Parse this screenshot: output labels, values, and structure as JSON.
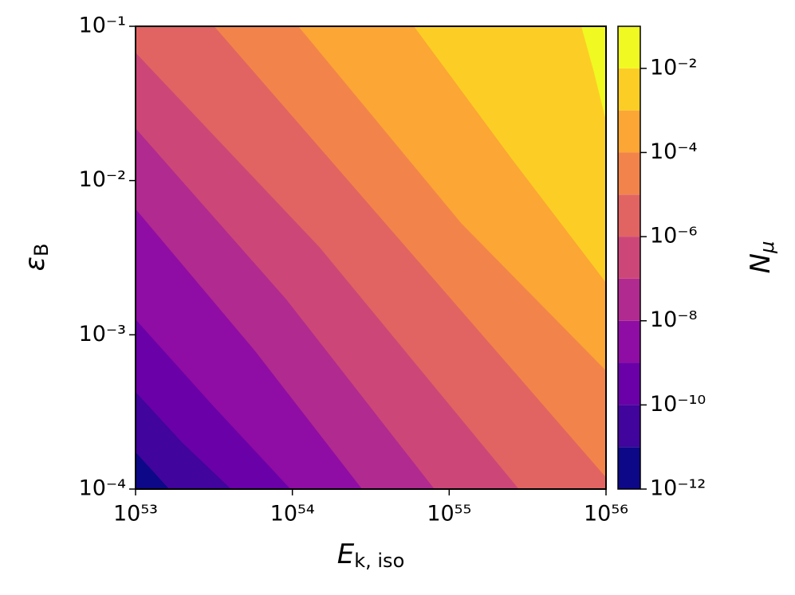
{
  "chart_data": {
    "type": "contour",
    "xlabel": "E",
    "xlabel_sub": "k, iso",
    "ylabel": "ε",
    "ylabel_sub": "B",
    "colorbar_label": "N",
    "colorbar_label_sub": "μ",
    "xscale": "log",
    "yscale": "log",
    "colorbar_scale": "log",
    "xlim": [
      1e+53,
      1e+56
    ],
    "ylim": [
      0.0001,
      0.1
    ],
    "xticks": [
      {
        "value": 1e+53,
        "label": "10⁵³"
      },
      {
        "value": 1e+54,
        "label": "10⁵⁴"
      },
      {
        "value": 1e+55,
        "label": "10⁵⁵"
      },
      {
        "value": 1e+56,
        "label": "10⁵⁶"
      }
    ],
    "yticks": [
      {
        "value": 0.0001,
        "label": "10⁻⁴"
      },
      {
        "value": 0.001,
        "label": "10⁻³"
      },
      {
        "value": 0.01,
        "label": "10⁻²"
      },
      {
        "value": 0.1,
        "label": "10⁻¹"
      }
    ],
    "levels": [
      1e-12,
      1e-11,
      1e-10,
      1e-09,
      1e-08,
      1e-07,
      1e-06,
      1e-05,
      0.0001,
      0.001,
      0.01,
      0.1
    ],
    "colors": [
      "#0d0887",
      "#41049d",
      "#6a00a8",
      "#8f0da4",
      "#b12a90",
      "#cc4778",
      "#e16462",
      "#f2844b",
      "#fca636",
      "#fcce25",
      "#f0f921"
    ],
    "colorbar_ticks": [
      {
        "value": 1e-12,
        "label": "10⁻¹²"
      },
      {
        "value": 1e-10,
        "label": "10⁻¹⁰"
      },
      {
        "value": 1e-08,
        "label": "10⁻⁸"
      },
      {
        "value": 1e-06,
        "label": "10⁻⁶"
      },
      {
        "value": 0.0001,
        "label": "10⁻⁴"
      },
      {
        "value": 0.01,
        "label": "10⁻²"
      }
    ],
    "contours": [
      {
        "x": [
          1e+53,
          1.65e+53
        ],
        "y": [
          0.000175,
          0.0001
        ]
      },
      {
        "x": [
          1e+53,
          2e+53,
          4.1e+53
        ],
        "y": [
          0.00043,
          0.0002,
          0.0001
        ]
      },
      {
        "x": [
          1e+53,
          3.2e+53,
          9.8e+53
        ],
        "y": [
          0.00127,
          0.00034,
          0.0001
        ]
      },
      {
        "x": [
          1e+53,
          5.8e+53,
          2.8e+54
        ],
        "y": [
          0.0066,
          0.00079,
          0.0001
        ]
      },
      {
        "x": [
          1e+53,
          9.2e+53,
          8.1e+54
        ],
        "y": [
          0.022,
          0.0017,
          0.0001
        ]
      },
      {
        "x": [
          1e+53,
          1.5e+54,
          2.8e+55
        ],
        "y": [
          0.068,
          0.0037,
          0.0001
        ]
      },
      {
        "x": [
          3.2e+53,
          4.8e+54,
          1e+56
        ],
        "y": [
          0.1,
          0.0042,
          0.00012
        ]
      },
      {
        "x": [
          1.1e+54,
          1.2e+55,
          1e+56
        ],
        "y": [
          0.1,
          0.0053,
          0.00059
        ]
      },
      {
        "x": [
          6e+54,
          2.5e+55,
          1e+56
        ],
        "y": [
          0.1,
          0.014,
          0.0022
        ]
      },
      {
        "x": [
          7e+55,
          8.4e+55,
          1e+56
        ],
        "y": [
          0.1,
          0.051,
          0.025
        ]
      }
    ]
  }
}
